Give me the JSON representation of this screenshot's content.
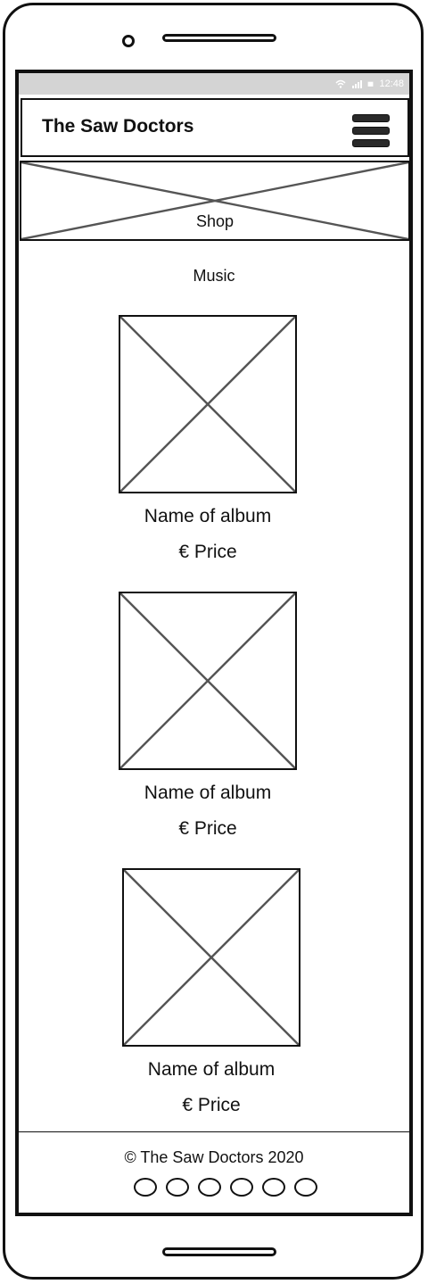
{
  "status_bar": {
    "time": "12:48",
    "icons": [
      "wifi-icon",
      "signal-icon",
      "battery-icon"
    ]
  },
  "header": {
    "brand": "The Saw Doctors",
    "menu_icon": "hamburger-menu-icon"
  },
  "banner": {
    "label": "Shop"
  },
  "section": {
    "title": "Music"
  },
  "albums": [
    {
      "name": "Name of album",
      "price": "€ Price"
    },
    {
      "name": "Name of album",
      "price": "€ Price"
    },
    {
      "name": "Name of album",
      "price": "€ Price"
    }
  ],
  "footer": {
    "copyright": "© The Saw Doctors 2020",
    "social_icons": [
      "social-icon-1",
      "social-icon-2",
      "social-icon-3",
      "social-icon-4",
      "social-icon-5",
      "social-icon-6"
    ]
  }
}
